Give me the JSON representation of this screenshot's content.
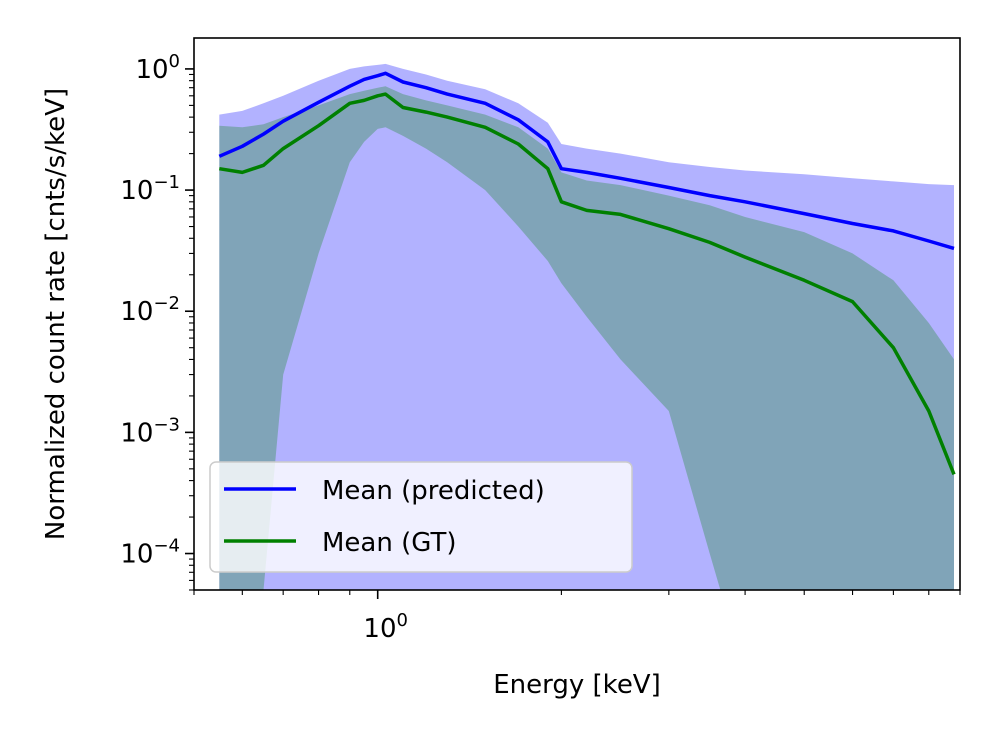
{
  "chart_data": {
    "type": "line",
    "title": "",
    "xlabel": "Energy [keV]",
    "ylabel": "Normalized count rate [cnts/s/keV]",
    "xscale": "log",
    "yscale": "log",
    "xlim": [
      0.5,
      9.0
    ],
    "ylim": [
      5e-05,
      1.8
    ],
    "legend_position": "lower-left",
    "x_tick_labels": [
      {
        "base": "10",
        "exp": "0",
        "value": 1.0
      }
    ],
    "y_tick_labels": [
      {
        "base": "10",
        "exp": "0",
        "value": 1
      },
      {
        "base": "10",
        "exp": "−1",
        "value": 0.1
      },
      {
        "base": "10",
        "exp": "−2",
        "value": 0.01
      },
      {
        "base": "10",
        "exp": "−3",
        "value": 0.001
      },
      {
        "base": "10",
        "exp": "−4",
        "value": 0.0001
      }
    ],
    "x": [
      0.55,
      0.6,
      0.65,
      0.7,
      0.8,
      0.9,
      0.95,
      1.0,
      1.03,
      1.1,
      1.2,
      1.3,
      1.5,
      1.7,
      1.9,
      2.0,
      2.2,
      2.5,
      3.0,
      3.5,
      4.0,
      5.0,
      6.0,
      7.0,
      8.0,
      8.8
    ],
    "series": [
      {
        "name": "Mean (predicted)",
        "color": "#0000ff",
        "values": [
          0.19,
          0.23,
          0.29,
          0.37,
          0.53,
          0.72,
          0.82,
          0.88,
          0.92,
          0.78,
          0.7,
          0.62,
          0.52,
          0.38,
          0.25,
          0.15,
          0.14,
          0.125,
          0.105,
          0.09,
          0.08,
          0.064,
          0.053,
          0.046,
          0.038,
          0.033
        ],
        "band_upper": [
          0.42,
          0.45,
          0.52,
          0.6,
          0.8,
          1.0,
          1.05,
          1.08,
          1.1,
          1.0,
          0.9,
          0.8,
          0.68,
          0.52,
          0.36,
          0.24,
          0.22,
          0.2,
          0.17,
          0.155,
          0.145,
          0.135,
          0.125,
          0.118,
          0.112,
          0.11
        ],
        "band_lower": [
          1e-05,
          1e-05,
          1e-05,
          1e-05,
          1e-05,
          1e-05,
          1e-05,
          1e-05,
          1e-05,
          1e-05,
          1e-05,
          1e-05,
          1e-05,
          1e-05,
          1e-05,
          1e-05,
          1e-05,
          1e-05,
          1e-05,
          1e-05,
          1e-05,
          1e-05,
          1e-05,
          1e-05,
          1e-05,
          1e-05
        ],
        "band_color": "#0000ff"
      },
      {
        "name": "Mean (GT)",
        "color": "#008000",
        "values": [
          0.15,
          0.14,
          0.16,
          0.22,
          0.34,
          0.52,
          0.55,
          0.6,
          0.62,
          0.48,
          0.44,
          0.4,
          0.33,
          0.24,
          0.15,
          0.08,
          0.068,
          0.063,
          0.048,
          0.037,
          0.028,
          0.018,
          0.012,
          0.005,
          0.0015,
          0.00045
        ],
        "band_upper": [
          0.34,
          0.33,
          0.35,
          0.4,
          0.5,
          0.62,
          0.66,
          0.7,
          0.72,
          0.62,
          0.55,
          0.5,
          0.42,
          0.33,
          0.22,
          0.14,
          0.12,
          0.11,
          0.09,
          0.075,
          0.06,
          0.045,
          0.03,
          0.018,
          0.008,
          0.004
        ],
        "band_lower": [
          1e-05,
          1e-05,
          5e-05,
          0.003,
          0.03,
          0.17,
          0.25,
          0.32,
          0.33,
          0.28,
          0.22,
          0.17,
          0.1,
          0.05,
          0.026,
          0.017,
          0.009,
          0.004,
          0.0015,
          0.0001,
          1e-05,
          1e-05,
          1e-05,
          1e-05,
          1e-05,
          1e-05
        ],
        "band_color": "#008000"
      }
    ]
  }
}
